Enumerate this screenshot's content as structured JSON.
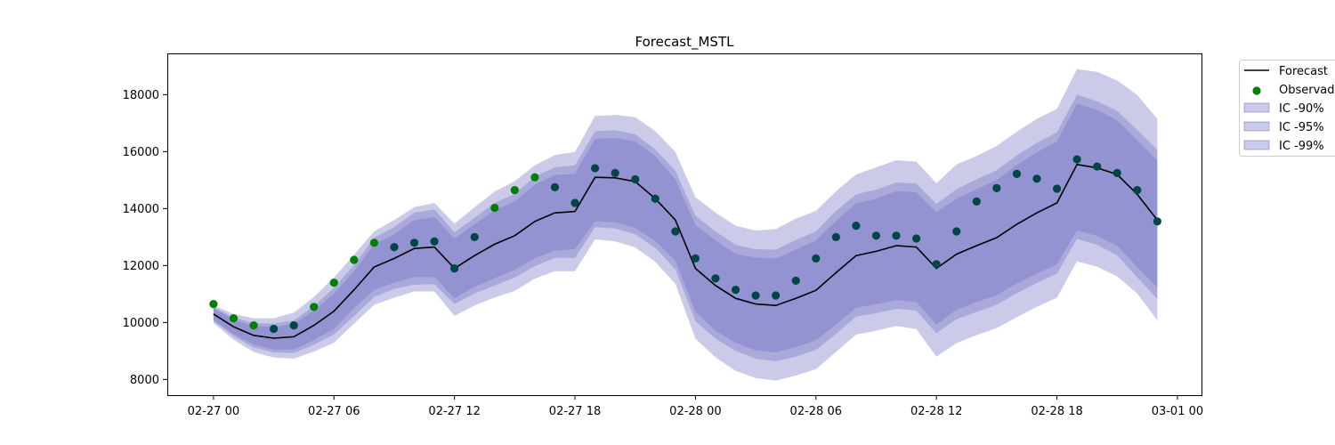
{
  "chart_data": {
    "type": "line",
    "title": "Forecast_MSTL",
    "xlabel": "",
    "ylabel": "",
    "x_start": "02-27 00",
    "x_step_hours": 1,
    "x": [
      "02-27 00",
      "02-27 01",
      "02-27 02",
      "02-27 03",
      "02-27 04",
      "02-27 05",
      "02-27 06",
      "02-27 07",
      "02-27 08",
      "02-27 09",
      "02-27 10",
      "02-27 11",
      "02-27 12",
      "02-27 13",
      "02-27 14",
      "02-27 15",
      "02-27 16",
      "02-27 17",
      "02-27 18",
      "02-27 19",
      "02-27 20",
      "02-27 21",
      "02-27 22",
      "02-27 23",
      "02-28 00",
      "02-28 01",
      "02-28 02",
      "02-28 03",
      "02-28 04",
      "02-28 05",
      "02-28 06",
      "02-28 07",
      "02-28 08",
      "02-28 09",
      "02-28 10",
      "02-28 11",
      "02-28 12",
      "02-28 13",
      "02-28 14",
      "02-28 15",
      "02-28 16",
      "02-28 17",
      "02-28 18",
      "02-28 19",
      "02-28 20",
      "02-28 21",
      "02-28 22",
      "02-28 23"
    ],
    "xticks": [
      "02-27 00",
      "02-27 06",
      "02-27 12",
      "02-27 18",
      "02-28 00",
      "02-28 06",
      "02-28 12",
      "02-28 18",
      "03-01 00"
    ],
    "yticks": [
      8000,
      10000,
      12000,
      14000,
      16000,
      18000
    ],
    "ylim": [
      7450,
      19450
    ],
    "xlim_hours": [
      -2.3,
      49.2
    ],
    "grid": false,
    "legend": {
      "placement": "outside-top-right",
      "entries": [
        "Forecast",
        "Observado",
        "IC -90%",
        "IC -95%",
        "IC -99%"
      ]
    },
    "colors": {
      "forecast": "#000000",
      "observed_fill": "#008000",
      "observed_edge": "#004646",
      "band": "#6a6abf"
    },
    "series": [
      {
        "name": "Forecast",
        "kind": "line",
        "values": [
          10300,
          9850,
          9550,
          9450,
          9500,
          9900,
          10400,
          11150,
          11950,
          12250,
          12600,
          12650,
          11900,
          12350,
          12750,
          13050,
          13550,
          13850,
          13900,
          15100,
          15080,
          14950,
          14350,
          13600,
          11900,
          11300,
          10850,
          10650,
          10600,
          10850,
          11130,
          11750,
          12350,
          12500,
          12700,
          12650,
          11900,
          12400,
          12700,
          12980,
          13450,
          13850,
          14200,
          15550,
          15430,
          15200,
          14500,
          13600
        ]
      },
      {
        "name": "Observado",
        "kind": "scatter",
        "values": [
          10650,
          10150,
          9900,
          9780,
          9900,
          10550,
          11400,
          12200,
          12800,
          12650,
          12800,
          12850,
          11900,
          13000,
          14030,
          14650,
          15100,
          14750,
          14200,
          15420,
          15250,
          15030,
          14350,
          13200,
          12250,
          11550,
          11150,
          10950,
          10950,
          11470,
          12250,
          13000,
          13400,
          13050,
          13050,
          12950,
          12050,
          13200,
          14250,
          14720,
          15220,
          15050,
          14700,
          15730,
          15480,
          15250,
          14650,
          13550
        ]
      },
      {
        "name": "IC -90%",
        "kind": "band",
        "lower": [
          10100,
          9600,
          9230,
          9050,
          9050,
          9380,
          9780,
          10500,
          11150,
          11400,
          11600,
          11600,
          10850,
          11250,
          11560,
          11850,
          12260,
          12520,
          12580,
          13550,
          13520,
          13320,
          12860,
          12170,
          10380,
          9710,
          9290,
          9020,
          8950,
          9140,
          9380,
          9930,
          10520,
          10650,
          10790,
          10720,
          9930,
          10450,
          10720,
          10960,
          11370,
          11720,
          12040,
          13240,
          13040,
          12700,
          11950,
          11220
        ],
        "upper": [
          10500,
          10100,
          9870,
          9850,
          9950,
          10420,
          11020,
          11800,
          12750,
          13100,
          13600,
          13700,
          12950,
          13450,
          13940,
          14250,
          14840,
          15180,
          15220,
          16450,
          16480,
          16360,
          15840,
          15030,
          13420,
          12890,
          12410,
          12280,
          12250,
          12560,
          12880,
          13570,
          14180,
          14350,
          14610,
          14580,
          13870,
          14350,
          14680,
          15000,
          15530,
          15980,
          16360,
          17690,
          17460,
          17100,
          16400,
          15680
        ]
      },
      {
        "name": "IC -95%",
        "kind": "band",
        "lower": [
          10050,
          9520,
          9120,
          8950,
          8930,
          9220,
          9580,
          10230,
          10900,
          11180,
          11330,
          11350,
          10650,
          11020,
          11300,
          11580,
          11980,
          12270,
          12270,
          13350,
          13300,
          13100,
          12620,
          11870,
          10050,
          9430,
          9000,
          8730,
          8640,
          8800,
          9040,
          9600,
          10210,
          10330,
          10480,
          10420,
          9620,
          10120,
          10370,
          10620,
          11030,
          11390,
          11720,
          12940,
          12730,
          12360,
          11590,
          10830
        ],
        "upper": [
          10550,
          10180,
          9980,
          9960,
          10080,
          10580,
          11220,
          12020,
          12980,
          13350,
          13860,
          13970,
          13170,
          13680,
          14200,
          14520,
          15120,
          15450,
          15520,
          16720,
          16750,
          16610,
          16080,
          15330,
          13750,
          13200,
          12730,
          12570,
          12560,
          12900,
          13200,
          13920,
          14500,
          14670,
          14920,
          14880,
          14170,
          14680,
          15030,
          15350,
          15870,
          16310,
          16680,
          18000,
          17770,
          17430,
          16760,
          16060
        ]
      },
      {
        "name": "IC -99%",
        "kind": "band",
        "lower": [
          9980,
          9400,
          8960,
          8770,
          8730,
          8980,
          9290,
          9960,
          10620,
          10870,
          11090,
          11090,
          10230,
          10600,
          10880,
          11110,
          11540,
          11800,
          11800,
          12920,
          12850,
          12640,
          12130,
          11360,
          9430,
          8780,
          8300,
          8050,
          7960,
          8140,
          8360,
          8970,
          9580,
          9710,
          9880,
          9770,
          8800,
          9280,
          9560,
          9800,
          10190,
          10550,
          10870,
          12150,
          11960,
          11620,
          11020,
          10080
        ]
      },
      {
        "name": "IC -99%",
        "kind": "band-upper",
        "upper": [
          10600,
          10300,
          10150,
          10150,
          10350,
          10900,
          11580,
          12380,
          13200,
          13600,
          14050,
          14200,
          13470,
          14050,
          14600,
          14960,
          15520,
          15880,
          15990,
          17250,
          17290,
          17210,
          16720,
          15990,
          14400,
          13860,
          13400,
          13230,
          13280,
          13650,
          13920,
          14610,
          15200,
          15450,
          15700,
          15650,
          14890,
          15550,
          15850,
          16200,
          16700,
          17150,
          17500,
          18900,
          18800,
          18500,
          17990,
          17150
        ]
      }
    ]
  }
}
